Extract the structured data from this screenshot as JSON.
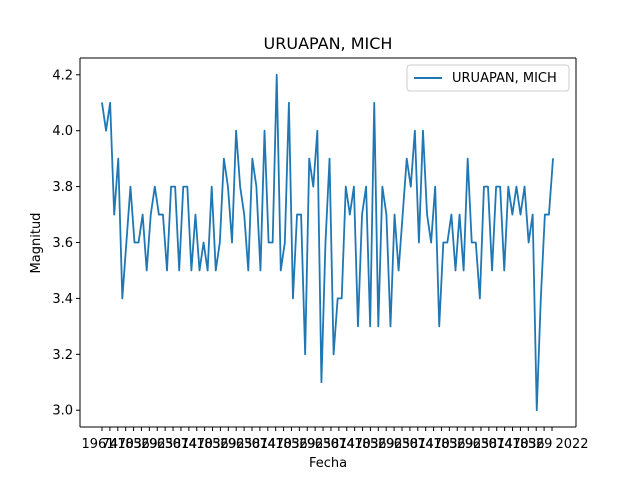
{
  "chart_data": {
    "type": "line",
    "title": "URUAPAN, MICH",
    "xlabel": "Fecha",
    "ylabel": "Magnitud",
    "ylim": [
      2.94,
      4.26
    ],
    "yticks": [
      3.0,
      3.2,
      3.4,
      3.6,
      3.8,
      4.0,
      4.2
    ],
    "ytick_labels": [
      "3.0",
      "3.2",
      "3.4",
      "3.6",
      "3.8",
      "4.0",
      "4.2"
    ],
    "x_first_tick_label": "1961",
    "x_last_tick_label": "2022",
    "x_tick_count": 58,
    "grid": false,
    "legend_position": "top-right",
    "series": [
      {
        "name": "URUAPAN, MICH",
        "color": "#1f77b4",
        "values": [
          4.1,
          4.0,
          4.1,
          3.7,
          3.9,
          3.4,
          3.6,
          3.8,
          3.6,
          3.6,
          3.7,
          3.5,
          3.7,
          3.8,
          3.7,
          3.7,
          3.5,
          3.8,
          3.8,
          3.5,
          3.8,
          3.8,
          3.5,
          3.7,
          3.5,
          3.6,
          3.5,
          3.8,
          3.5,
          3.6,
          3.9,
          3.8,
          3.6,
          4.0,
          3.8,
          3.7,
          3.5,
          3.9,
          3.8,
          3.5,
          4.0,
          3.6,
          3.6,
          4.2,
          3.5,
          3.6,
          4.1,
          3.4,
          3.7,
          3.7,
          3.2,
          3.9,
          3.8,
          4.0,
          3.1,
          3.6,
          3.9,
          3.2,
          3.4,
          3.4,
          3.8,
          3.7,
          3.8,
          3.3,
          3.7,
          3.8,
          3.3,
          4.1,
          3.3,
          3.8,
          3.7,
          3.3,
          3.7,
          3.5,
          3.7,
          3.9,
          3.8,
          4.0,
          3.6,
          4.0,
          3.7,
          3.6,
          3.8,
          3.3,
          3.6,
          3.6,
          3.7,
          3.5,
          3.7,
          3.5,
          3.9,
          3.6,
          3.6,
          3.4,
          3.8,
          3.8,
          3.5,
          3.8,
          3.8,
          3.5,
          3.8,
          3.7,
          3.8,
          3.7,
          3.8,
          3.6,
          3.7,
          3.0,
          3.4,
          3.7,
          3.7,
          3.9
        ]
      }
    ]
  }
}
